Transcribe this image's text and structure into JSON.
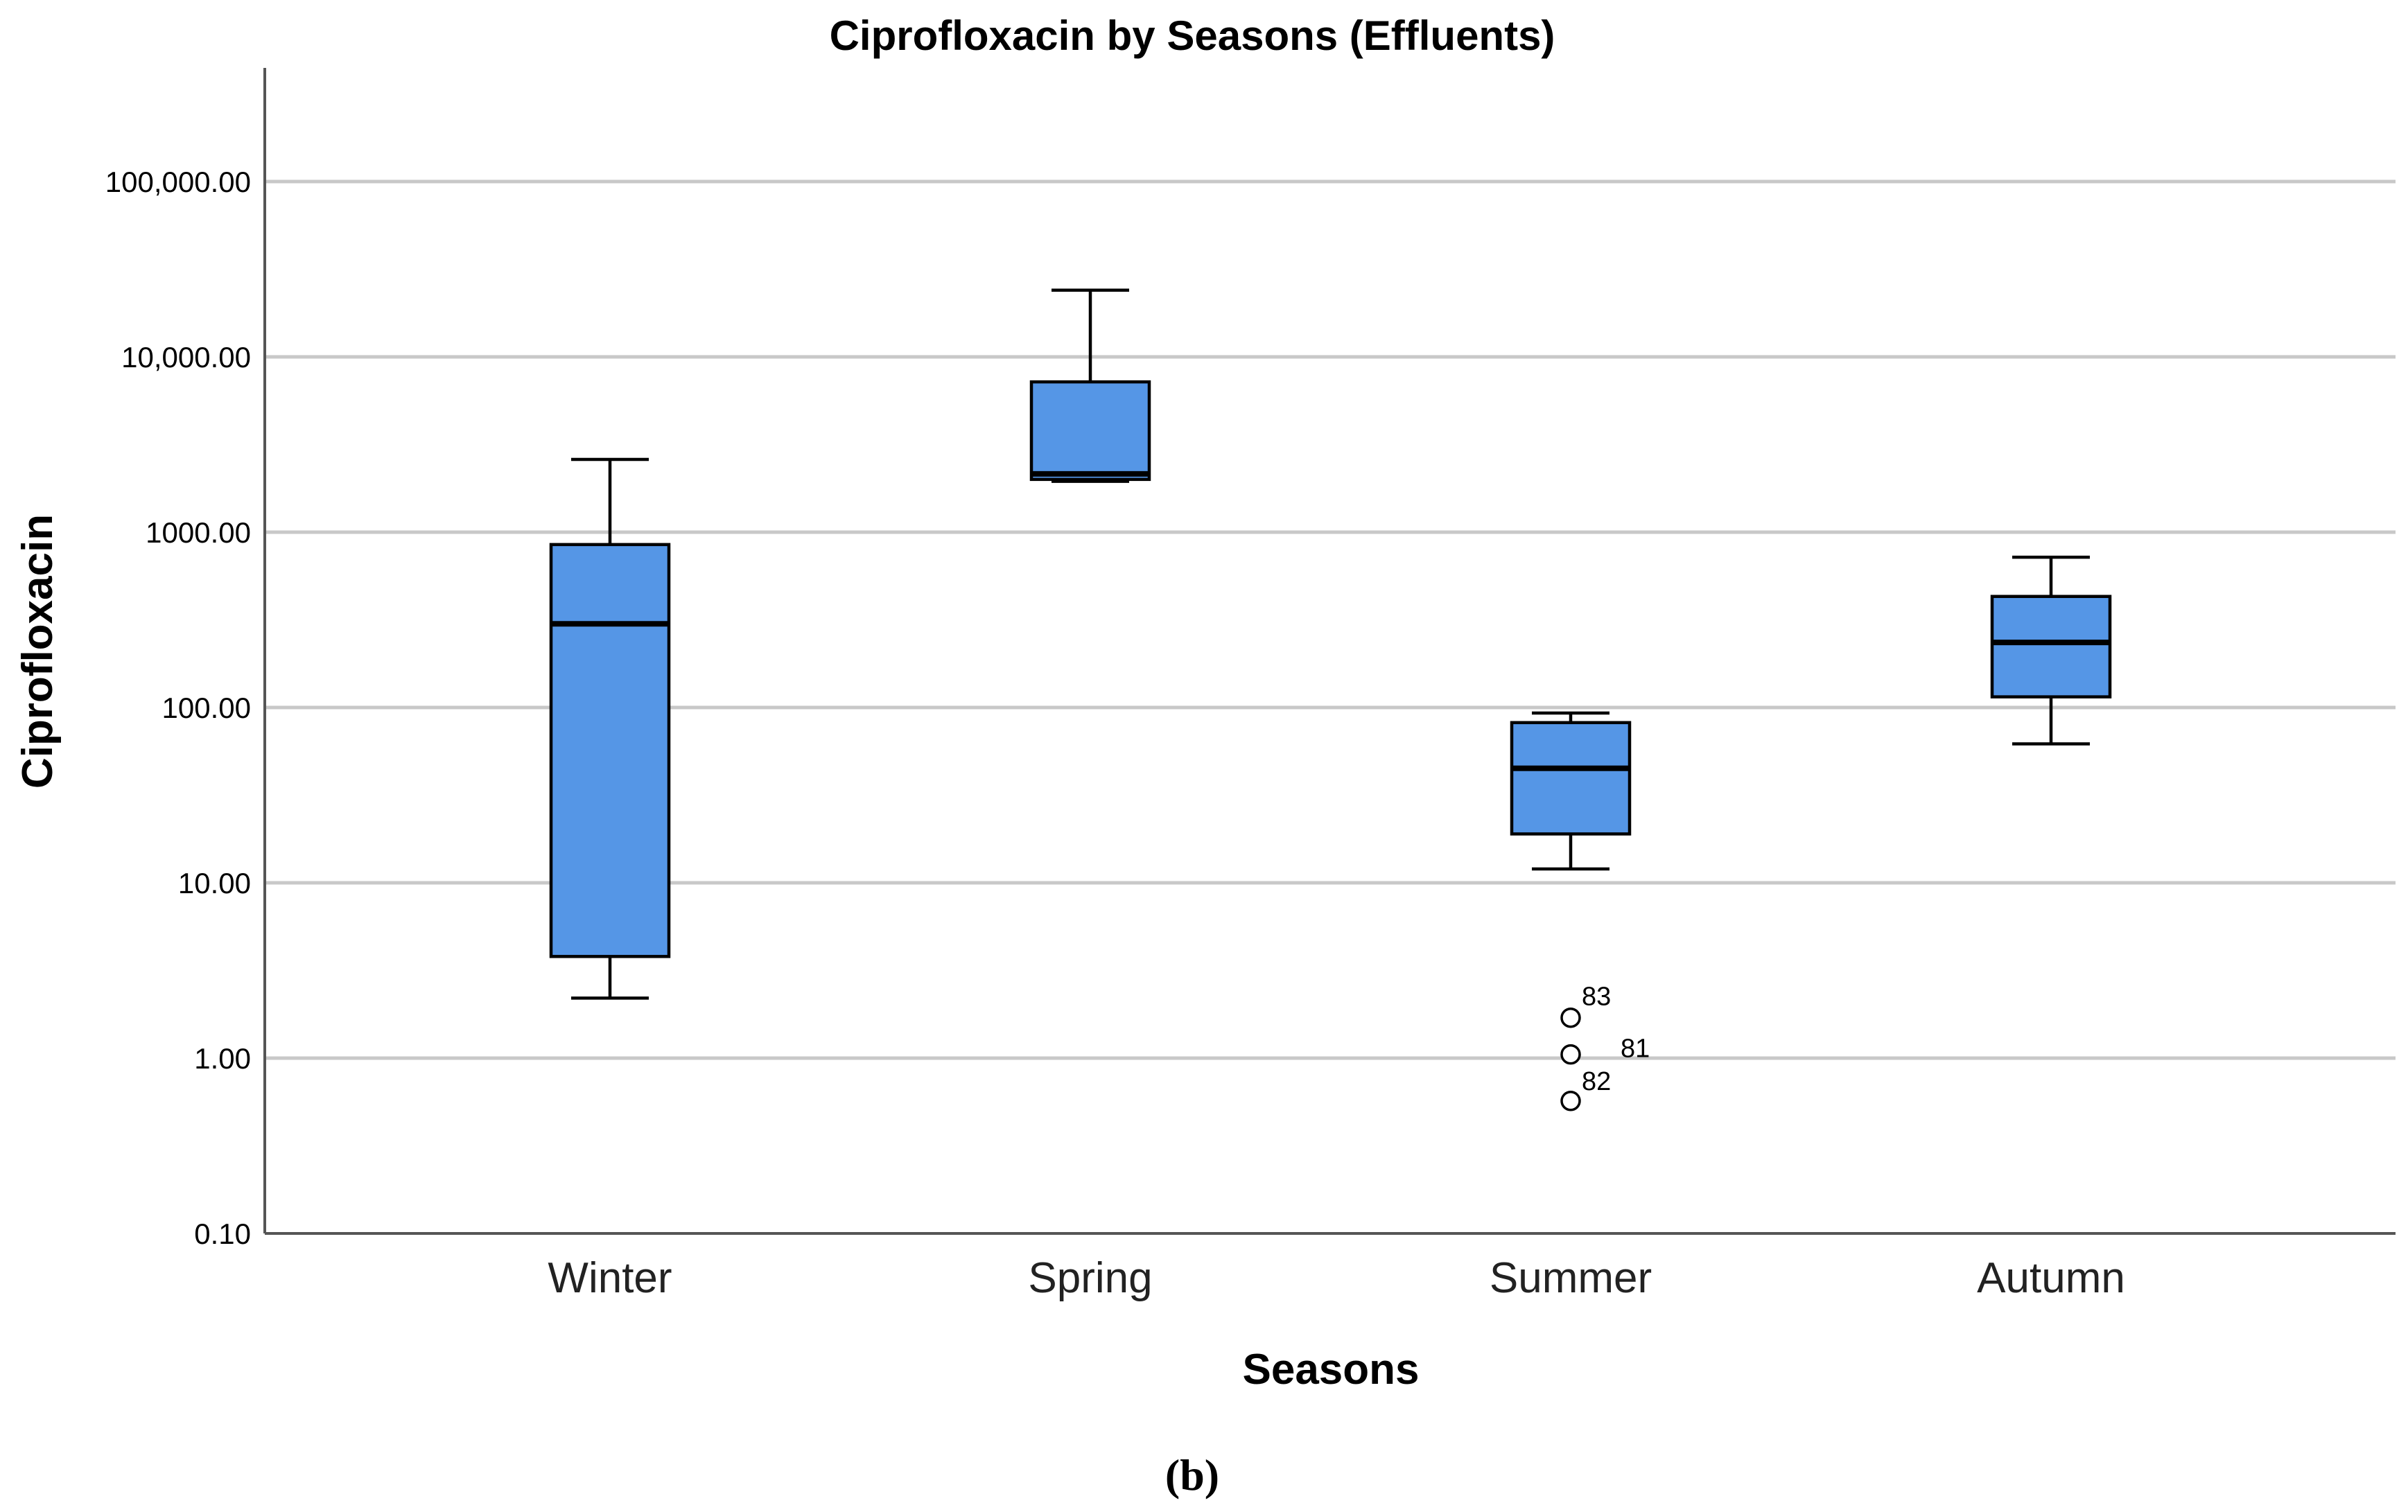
{
  "chart_data": {
    "type": "box",
    "title": "Ciprofloxacin by Seasons (Effluents)",
    "xlabel": "Seasons",
    "ylabel": "Ciprofloxacin",
    "y_scale": "log",
    "ylim": [
      0.1,
      500000
    ],
    "y_ticks": [
      {
        "value": 0.1,
        "label": "0.10"
      },
      {
        "value": 1,
        "label": "1.00"
      },
      {
        "value": 10,
        "label": "10.00"
      },
      {
        "value": 100,
        "label": "100.00"
      },
      {
        "value": 1000,
        "label": "1000.00"
      },
      {
        "value": 10000,
        "label": "10,000.00"
      },
      {
        "value": 100000,
        "label": "100,000.00"
      }
    ],
    "grid": true,
    "categories": [
      "Winter",
      "Spring",
      "Summer",
      "Autumn"
    ],
    "boxes": [
      {
        "category": "Winter",
        "whisker_low": 2.2,
        "q1": 3.8,
        "median": 300,
        "q3": 850,
        "whisker_high": 2600,
        "outliers": []
      },
      {
        "category": "Spring",
        "whisker_low": 1950,
        "q1": 2000,
        "median": 2150,
        "q3": 7200,
        "whisker_high": 24000,
        "outliers": []
      },
      {
        "category": "Summer",
        "whisker_low": 12,
        "q1": 19,
        "median": 45,
        "q3": 82,
        "whisker_high": 93,
        "outliers": [
          {
            "value": 1.7,
            "label": "83"
          },
          {
            "value": 1.05,
            "label": "81"
          },
          {
            "value": 0.57,
            "label": "82"
          }
        ]
      },
      {
        "category": "Autumn",
        "whisker_low": 62,
        "q1": 115,
        "median": 235,
        "q3": 430,
        "whisker_high": 720,
        "outliers": []
      }
    ],
    "box_color": "#5596e6"
  },
  "caption": "(b)"
}
